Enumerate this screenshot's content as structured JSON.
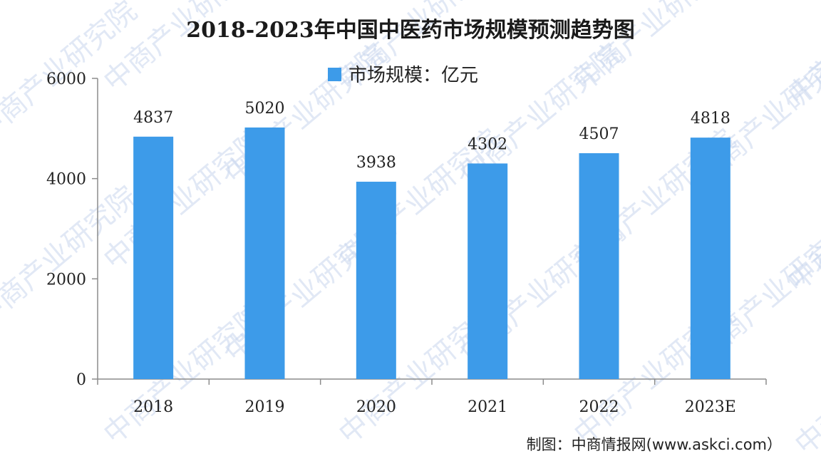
{
  "colors": {
    "bar": "#3d9be9",
    "axis": "#8c8c8c",
    "watermark": "#c9d7ee"
  },
  "watermark": {
    "text": "中商产业研究院"
  },
  "source": {
    "text": "制图：中商情报网(www.askci.com）"
  },
  "chart_data": {
    "type": "bar",
    "title": "2018-2023年中国中医药市场规模预测趋势图",
    "categories": [
      "2018",
      "2019",
      "2020",
      "2021",
      "2022",
      "2023E"
    ],
    "series": [
      {
        "name": "市场规模：亿元",
        "values": [
          4837,
          5020,
          3938,
          4302,
          4507,
          4818
        ]
      }
    ],
    "data_labels": [
      "4837",
      "5020",
      "3938",
      "4302",
      "4507",
      "4818"
    ],
    "yticks": [
      0,
      2000,
      4000,
      6000
    ],
    "ylim": [
      0,
      6000
    ],
    "xlabel": "",
    "ylabel": "",
    "grid": false,
    "legend": "top-center"
  }
}
